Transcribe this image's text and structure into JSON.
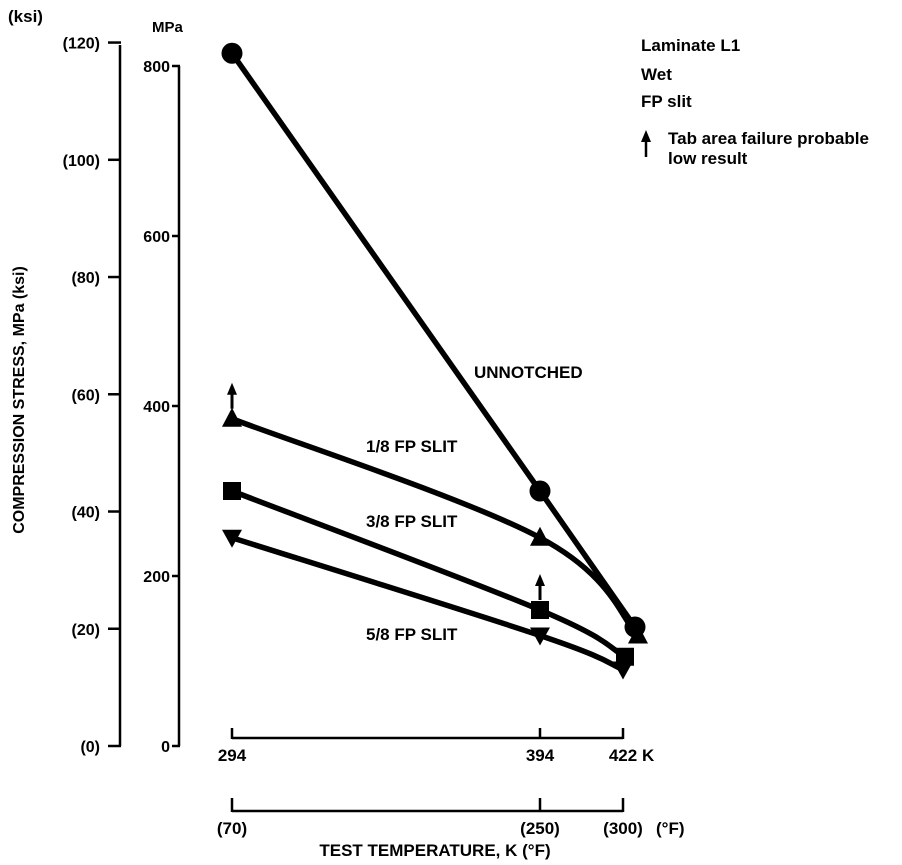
{
  "chart_data": {
    "type": "line",
    "ylabel": "COMPRESSION STRESS, MPa (ksi)",
    "xlabel": "TEST TEMPERATURE, K (°F)",
    "y_axis_mpa": {
      "unit": "MPa",
      "ticks": [
        "0",
        "200",
        "400",
        "600",
        "800"
      ],
      "range": [
        0,
        800
      ]
    },
    "y_axis_ksi": {
      "unit": "(ksi)",
      "ticks": [
        "(0)",
        "(20)",
        "(40)",
        "(60)",
        "(80)",
        "(100)",
        "(120)"
      ],
      "range": [
        0,
        120
      ]
    },
    "x_axis_k": {
      "unit": "K",
      "ticks": [
        294,
        394,
        422
      ]
    },
    "x_axis_f": {
      "unit": "(°F)",
      "ticks": [
        "(70)",
        "(250)",
        "(300)"
      ]
    },
    "legend": {
      "lines": [
        "Laminate L1",
        "Wet",
        "FP slit"
      ],
      "tab_note": [
        "Tab area failure probable",
        "low result"
      ]
    },
    "series": [
      {
        "name": "UNNOTCHED",
        "marker": "circle",
        "x": [
          294,
          394,
          422
        ],
        "y": [
          815,
          300,
          140
        ],
        "tab_failure": [
          false,
          false,
          false
        ]
      },
      {
        "name": "1/8 FP SLIT",
        "marker": "triangle-up",
        "x": [
          294,
          394,
          422
        ],
        "y": [
          385,
          245,
          130
        ],
        "tab_failure": [
          true,
          false,
          false
        ]
      },
      {
        "name": "3/8 FP SLIT",
        "marker": "square",
        "x": [
          294,
          394,
          422
        ],
        "y": [
          300,
          160,
          105
        ],
        "tab_failure": [
          false,
          true,
          false
        ]
      },
      {
        "name": "5/8 FP SLIT",
        "marker": "triangle-down",
        "x": [
          294,
          394,
          422
        ],
        "y": [
          245,
          130,
          90
        ],
        "tab_failure": [
          false,
          false,
          false
        ]
      }
    ]
  }
}
